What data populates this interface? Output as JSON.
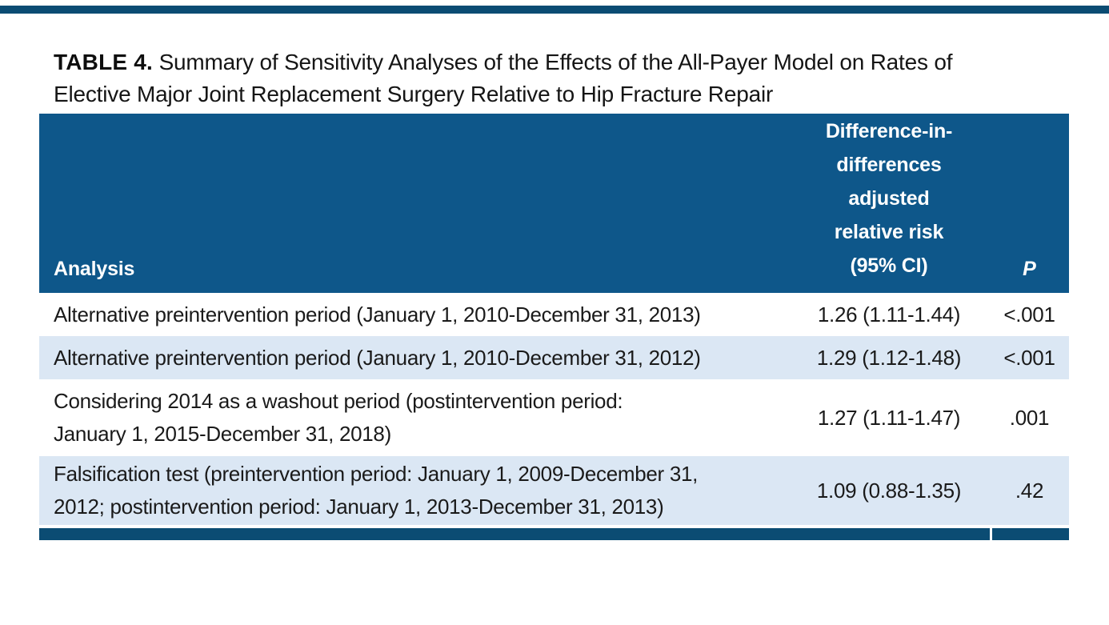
{
  "caption": {
    "label": "TABLE 4.",
    "line1": "Summary of Sensitivity Analyses of the Effects of the All-Payer Model on Rates of",
    "line2": "Elective Major Joint Replacement Surgery Relative to Hip Fracture Repair"
  },
  "table": {
    "columns": {
      "analysis": "Analysis",
      "rr": "Difference-in-\ndifferences\nadjusted\nrelative risk\n(95% CI)",
      "p": "P"
    },
    "rows": [
      {
        "analysis": "Alternative preintervention period (January 1, 2010-December 31, 2013)",
        "rr": "1.26 (1.11-1.44)",
        "p": "<.001"
      },
      {
        "analysis": "Alternative preintervention period (January 1, 2010-December 31, 2012)",
        "rr": "1.29 (1.12-1.48)",
        "p": "<.001"
      },
      {
        "analysis": "Considering 2014 as a washout period (postintervention period:\nJanuary 1, 2015-December 31, 2018)",
        "rr": "1.27 (1.11-1.47)",
        "p": ".001"
      },
      {
        "analysis": "Falsification test (preintervention period: January 1, 2009-December 31,\n2012; postintervention period: January 1, 2013-December 31, 2013)",
        "rr": "1.09 (0.88-1.35)",
        "p": ".42"
      }
    ],
    "colors": {
      "header_bg": "#0e578a",
      "alt_row_bg": "#dbe7f4",
      "rule_bar": "#0b4c73",
      "header_text": "#ffffff",
      "body_text": "#1a1a1a"
    }
  }
}
